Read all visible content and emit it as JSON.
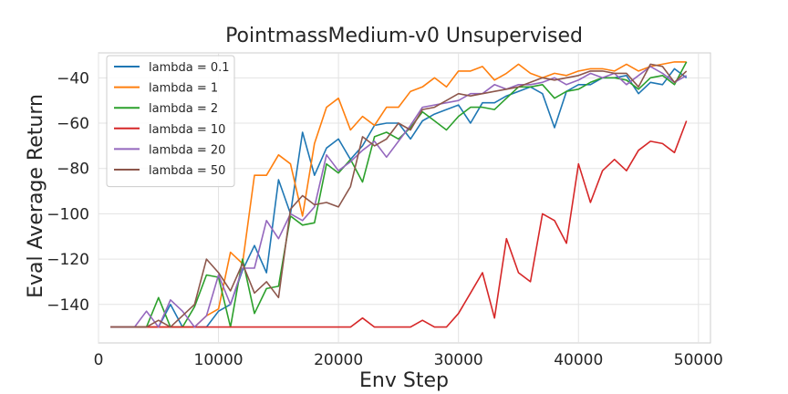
{
  "chart_data": {
    "type": "line",
    "title": "PointmassMedium-v0 Unsupervised",
    "xlabel": "Env Step",
    "ylabel": "Eval Average Return",
    "xlim": [
      0,
      51000
    ],
    "ylim": [
      -157,
      -29
    ],
    "xticks": [
      0,
      10000,
      20000,
      30000,
      40000,
      50000
    ],
    "yticks": [
      -140,
      -120,
      -100,
      -80,
      -60,
      -40
    ],
    "grid": true,
    "legend_position": "top-left",
    "x": [
      1000,
      2000,
      3000,
      4000,
      5000,
      6000,
      7000,
      8000,
      9000,
      10000,
      11000,
      12000,
      13000,
      14000,
      15000,
      16000,
      17000,
      18000,
      19000,
      20000,
      21000,
      22000,
      23000,
      24000,
      25000,
      26000,
      27000,
      28000,
      29000,
      30000,
      31000,
      32000,
      33000,
      34000,
      35000,
      36000,
      37000,
      38000,
      39000,
      40000,
      41000,
      42000,
      43000,
      44000,
      45000,
      46000,
      47000,
      48000,
      49000
    ],
    "series": [
      {
        "name": "lambda = 0.1",
        "color": "#1f77b4",
        "values": [
          -150,
          -150,
          -150,
          -150,
          -150,
          -140,
          -150,
          -150,
          -150,
          -143,
          -140,
          -125,
          -114,
          -126,
          -85,
          -100,
          -64,
          -83,
          -71,
          -67,
          -76,
          -70,
          -61,
          -60,
          -60,
          -67,
          -59,
          -56,
          -54,
          -52,
          -60,
          -51,
          -51,
          -48,
          -46,
          -44,
          -47,
          -62,
          -46,
          -43,
          -43,
          -40,
          -40,
          -39,
          -47,
          -42,
          -43,
          -36,
          -40
        ]
      },
      {
        "name": "lambda = 1",
        "color": "#ff7f0e",
        "values": [
          -150,
          -150,
          -150,
          -150,
          -150,
          -150,
          -150,
          -150,
          -145,
          -142,
          -117,
          -122,
          -83,
          -83,
          -74,
          -78,
          -101,
          -69,
          -53,
          -49,
          -63,
          -57,
          -61,
          -53,
          -53,
          -46,
          -44,
          -40,
          -44,
          -37,
          -37,
          -35,
          -41,
          -38,
          -34,
          -38,
          -40,
          -38,
          -39,
          -37,
          -36,
          -36,
          -37,
          -34,
          -37,
          -35,
          -34,
          -33,
          -33
        ]
      },
      {
        "name": "lambda = 2",
        "color": "#2ca02c",
        "values": [
          -150,
          -150,
          -150,
          -150,
          -137,
          -150,
          -150,
          -141,
          -127,
          -128,
          -150,
          -120,
          -144,
          -133,
          -132,
          -101,
          -105,
          -104,
          -78,
          -82,
          -76,
          -86,
          -66,
          -64,
          -67,
          -62,
          -55,
          -59,
          -63,
          -57,
          -53,
          -53,
          -54,
          -49,
          -44,
          -44,
          -43,
          -49,
          -46,
          -45,
          -42,
          -40,
          -40,
          -41,
          -45,
          -40,
          -39,
          -43,
          -33
        ]
      },
      {
        "name": "lambda = 10",
        "color": "#d62728",
        "values": [
          -150,
          -150,
          -150,
          -150,
          -150,
          -150,
          -150,
          -150,
          -150,
          -150,
          -150,
          -150,
          -150,
          -150,
          -150,
          -150,
          -150,
          -150,
          -150,
          -150,
          -150,
          -146,
          -150,
          -150,
          -150,
          -150,
          -147,
          -150,
          -150,
          -144,
          -135,
          -126,
          -146,
          -111,
          -126,
          -130,
          -100,
          -103,
          -113,
          -78,
          -95,
          -81,
          -76,
          -81,
          -72,
          -68,
          -69,
          -73,
          -59
        ]
      },
      {
        "name": "lambda = 20",
        "color": "#9467bd",
        "values": [
          -150,
          -150,
          -150,
          -143,
          -150,
          -138,
          -143,
          -150,
          -145,
          -127,
          -140,
          -124,
          -124,
          -103,
          -111,
          -100,
          -103,
          -97,
          -74,
          -81,
          -77,
          -72,
          -68,
          -75,
          -68,
          -61,
          -53,
          -52,
          -51,
          -50,
          -47,
          -47,
          -43,
          -45,
          -43,
          -43,
          -42,
          -40,
          -43,
          -41,
          -38,
          -40,
          -38,
          -43,
          -39,
          -35,
          -38,
          -42,
          -39
        ]
      },
      {
        "name": "lambda = 50",
        "color": "#8c564b",
        "values": [
          -150,
          -150,
          -150,
          -150,
          -147,
          -150,
          -145,
          -140,
          -120,
          -126,
          -134,
          -122,
          -135,
          -130,
          -137,
          -98,
          -92,
          -96,
          -95,
          -97,
          -88,
          -66,
          -70,
          -67,
          -60,
          -63,
          -54,
          -53,
          -50,
          -47,
          -48,
          -47,
          -46,
          -45,
          -44,
          -42,
          -40,
          -41,
          -40,
          -39,
          -37,
          -37,
          -38,
          -38,
          -44,
          -34,
          -35,
          -42,
          -37
        ]
      }
    ]
  }
}
